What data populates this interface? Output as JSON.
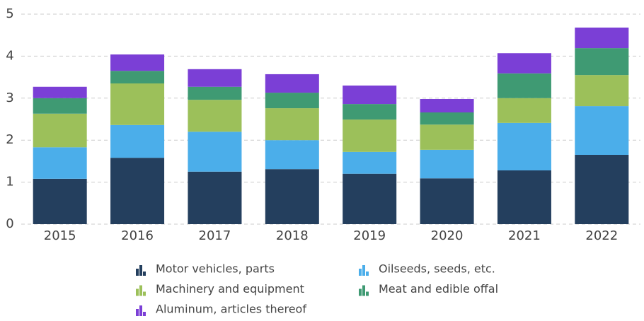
{
  "chart_data": {
    "type": "stacked_bar",
    "categories": [
      "2015",
      "2016",
      "2017",
      "2018",
      "2019",
      "2020",
      "2021",
      "2022"
    ],
    "series": [
      {
        "name": "Motor vehicles, parts",
        "color": "#243f5e",
        "values": [
          1.08,
          1.58,
          1.25,
          1.31,
          1.2,
          1.09,
          1.28,
          1.65
        ]
      },
      {
        "name": "Oilseeds, seeds, etc.",
        "color": "#4baeea",
        "values": [
          0.75,
          0.78,
          0.95,
          0.69,
          0.52,
          0.68,
          1.13,
          1.16
        ]
      },
      {
        "name": "Machinery and equipment",
        "color": "#9cc05a",
        "values": [
          0.8,
          0.99,
          0.76,
          0.76,
          0.77,
          0.6,
          0.59,
          0.74
        ]
      },
      {
        "name": "Meat and edible offal",
        "color": "#3f9a73",
        "values": [
          0.37,
          0.3,
          0.31,
          0.37,
          0.37,
          0.29,
          0.59,
          0.64
        ]
      },
      {
        "name": "Aluminum, articles thereof",
        "color": "#7b3fd6",
        "values": [
          0.27,
          0.39,
          0.42,
          0.44,
          0.44,
          0.32,
          0.48,
          0.49
        ]
      }
    ],
    "ylim": [
      0,
      5
    ],
    "yticks": [
      0,
      1,
      2,
      3,
      4,
      5
    ],
    "grid": true
  }
}
